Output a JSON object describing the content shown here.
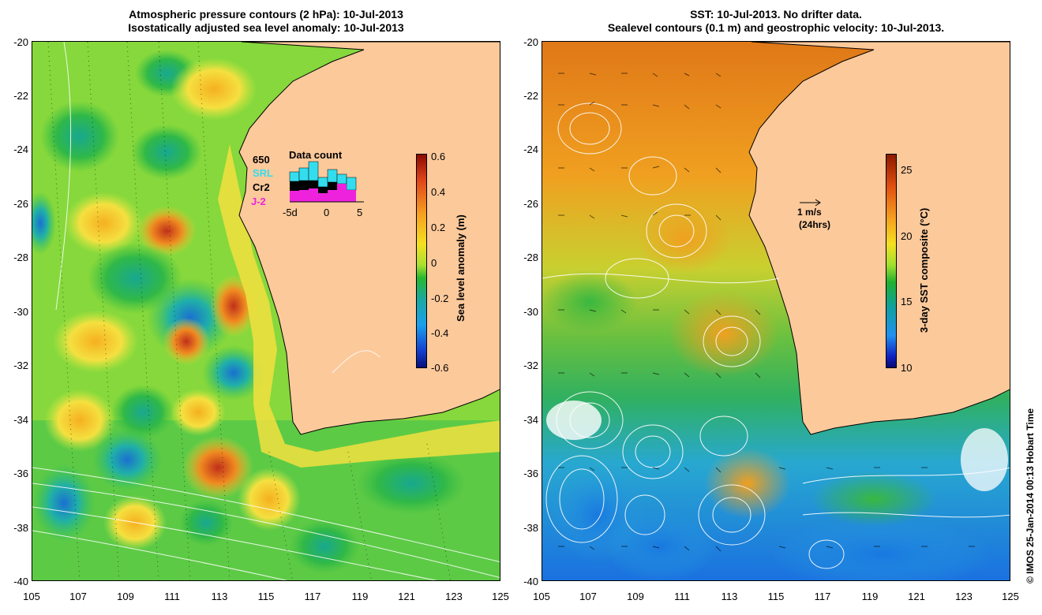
{
  "left": {
    "title_line1": "Atmospheric pressure contours (2 hPa): 10-Jul-2013",
    "title_line2": "Isostatically adjusted sea level anomaly: 10-Jul-2013",
    "colorbar_label": "Sea level anomaly (m)",
    "colorbar_ticks": [
      "0.6",
      "0.4",
      "0.2",
      "0",
      "-0.2",
      "-0.4",
      "-0.6"
    ],
    "data_count": {
      "title": "Data count",
      "max": "650",
      "sat1": "SRL",
      "sat2": "Cr2",
      "sat3": "J-2",
      "axis": [
        "-5d",
        "0",
        "5"
      ],
      "sat1_color": "#33ddee",
      "sat3_color": "#ee22dd"
    }
  },
  "right": {
    "title_line1": "SST: 10-Jul-2013. No drifter data.",
    "title_line2": "Sealevel contours (0.1 m) and geostrophic velocity: 10-Jul-2013.",
    "colorbar_label": "3-day SST composite (°C)",
    "colorbar_ticks": [
      "25",
      "20",
      "15",
      "10"
    ],
    "velocity_scale_line1": "1 m/s",
    "velocity_scale_line2": "(24hrs)"
  },
  "axes": {
    "lat_ticks": [
      "-20",
      "-22",
      "-24",
      "-26",
      "-28",
      "-30",
      "-32",
      "-34",
      "-36",
      "-38",
      "-40"
    ],
    "lon_ticks": [
      "105",
      "107",
      "109",
      "111",
      "113",
      "115",
      "117",
      "119",
      "121",
      "123",
      "125"
    ]
  },
  "copyright": "© IMOS 25-Jan-2014 00:13 Hobart Time",
  "colors": {
    "land": "#fcc99b",
    "sea_left": "#7ed83e",
    "sea_right_warm": "#e89a22",
    "sea_right_cool": "#2aa8e8"
  }
}
